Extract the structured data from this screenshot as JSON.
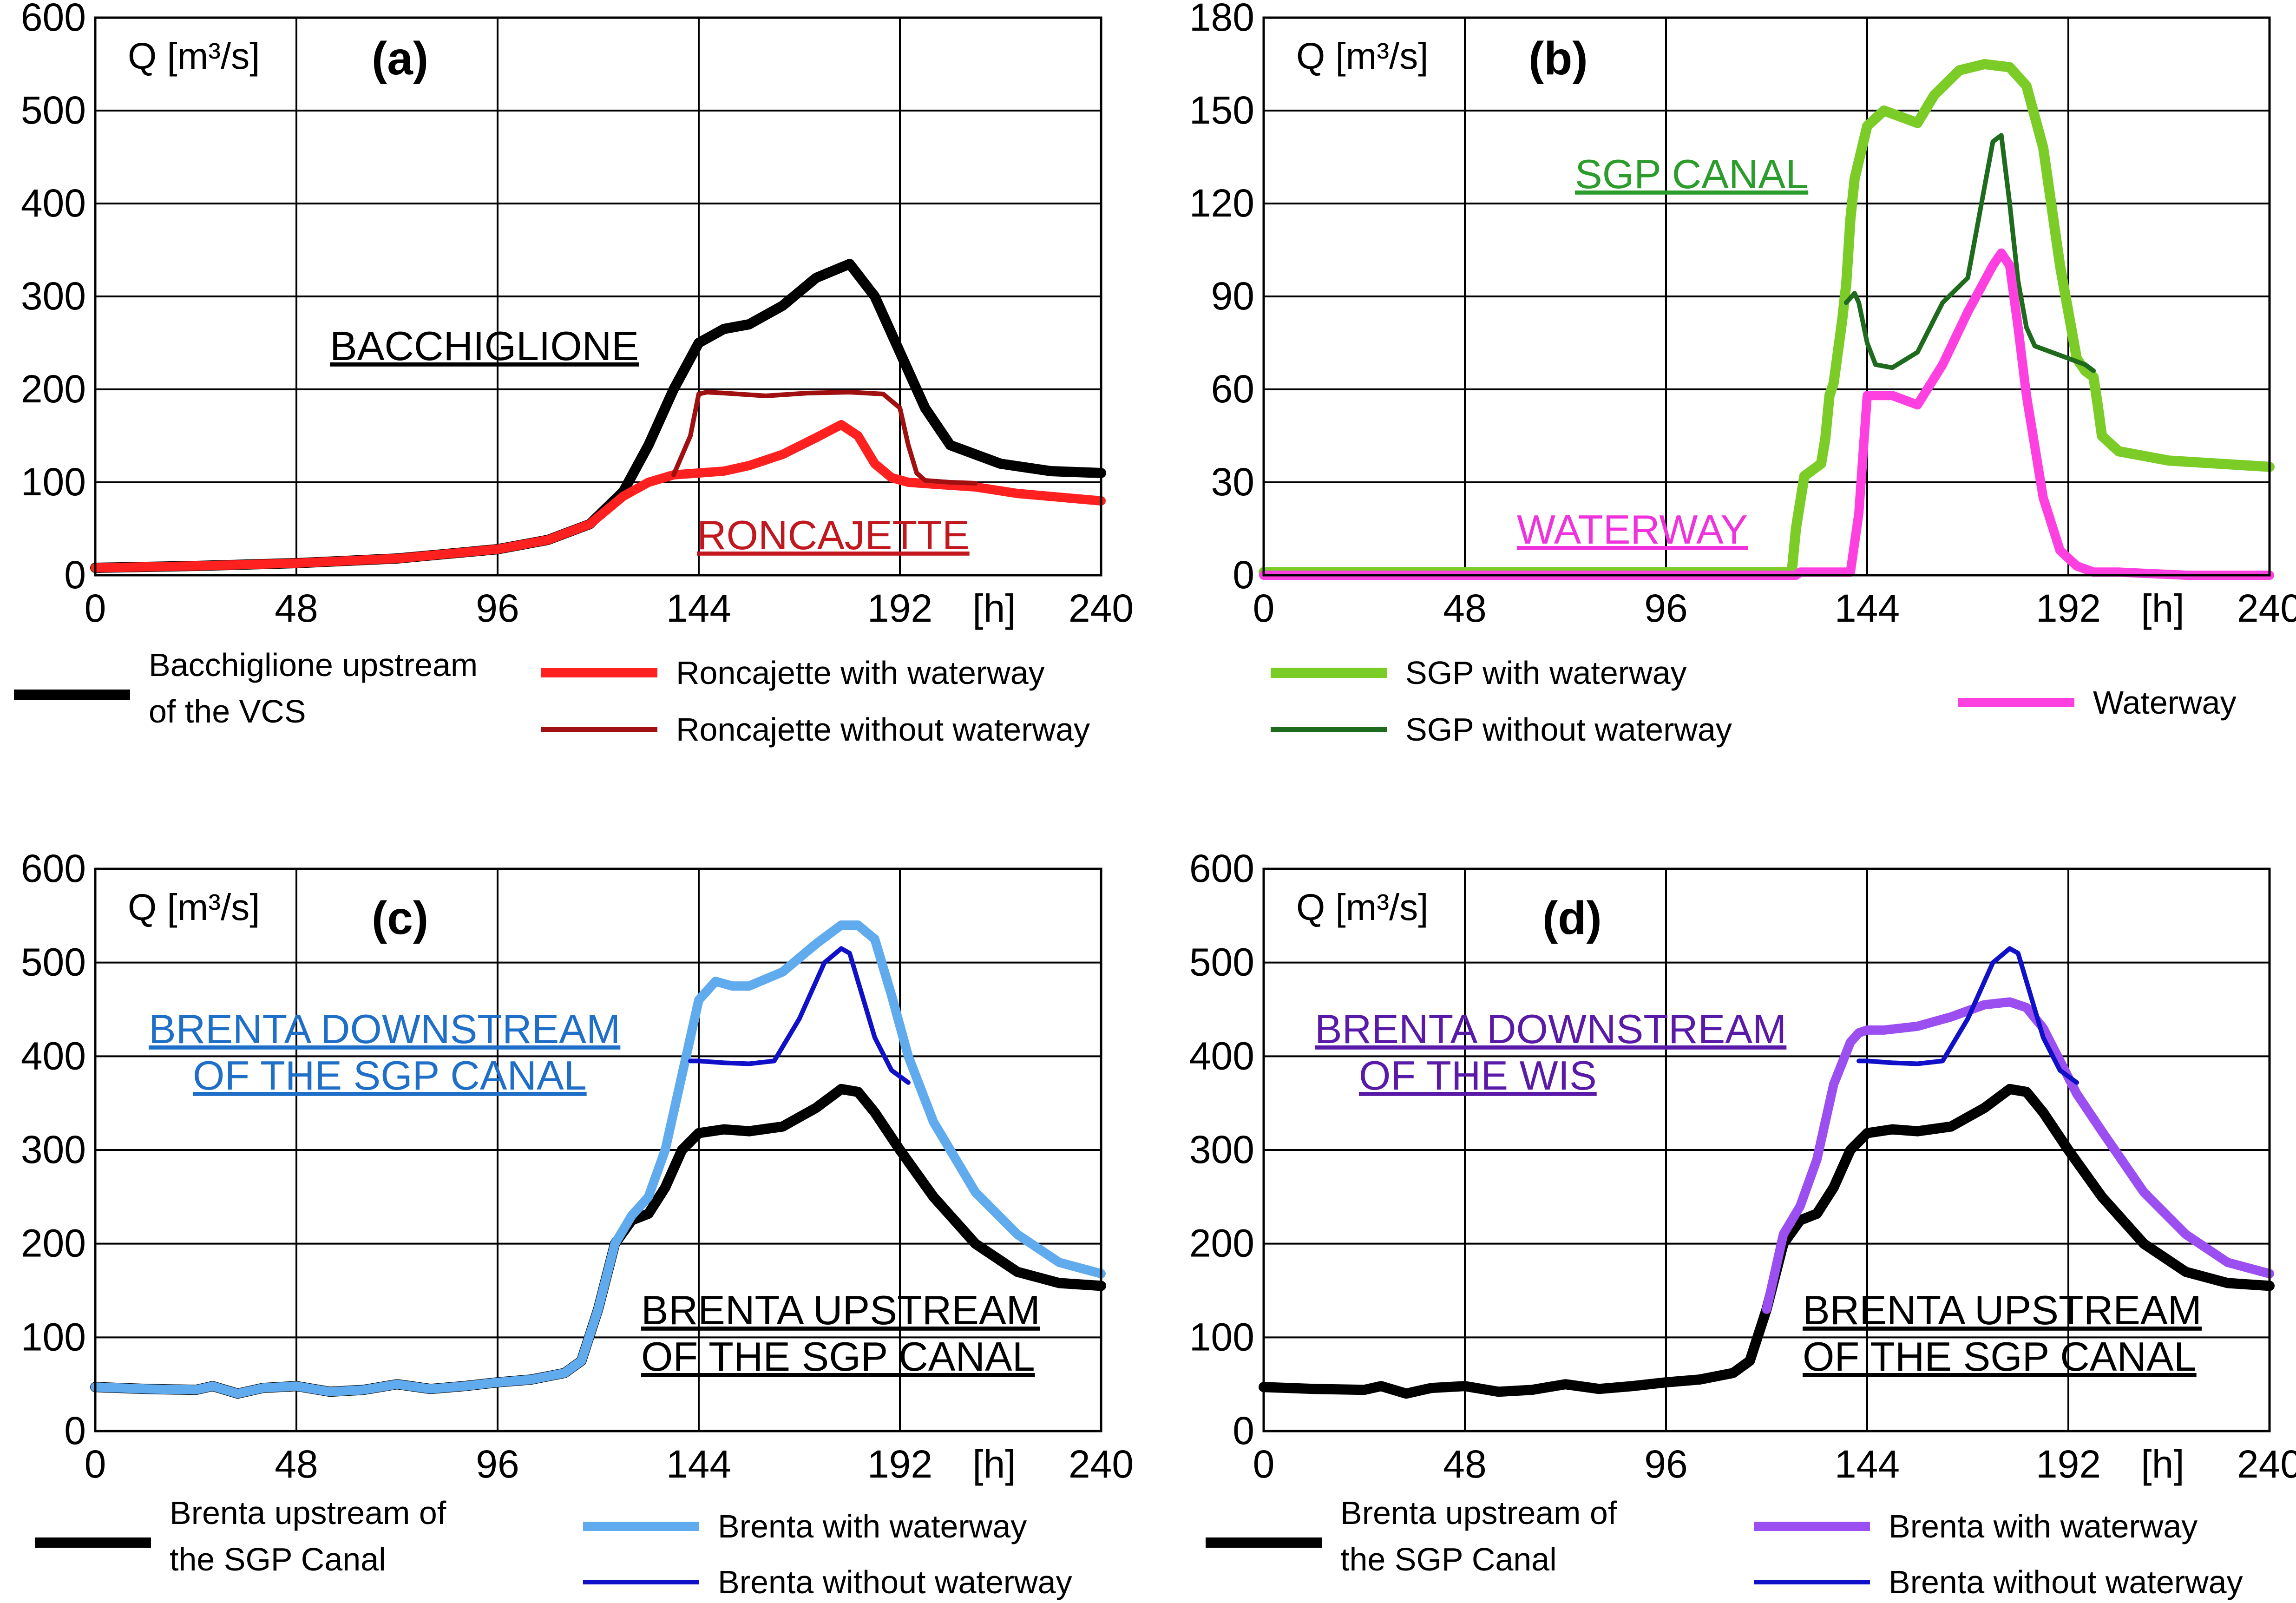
{
  "chart_data": [
    {
      "type": "line",
      "panel_label": "(a)",
      "ylabel": "Q [m³/s]",
      "xlabel": "[h]",
      "xlim": [
        0,
        240
      ],
      "ylim": [
        0,
        600
      ],
      "xticks": [
        0,
        48,
        96,
        144,
        192,
        240
      ],
      "yticks": [
        0,
        100,
        200,
        300,
        400,
        500,
        600
      ],
      "annotations": [
        {
          "text": "BACCHIGLIONE",
          "color": "#000000"
        },
        {
          "text": "RONCAJETTE",
          "color": "#c0181e"
        }
      ],
      "series": [
        {
          "name": "Bacchiglione upstream of the VCS",
          "legend_lines": [
            "Bacchiglione upstream",
            "of the VCS"
          ],
          "color": "#000000",
          "width": 22,
          "x": [
            0,
            24,
            48,
            72,
            96,
            108,
            118,
            126,
            132,
            138,
            144,
            150,
            156,
            164,
            172,
            180,
            186,
            192,
            198,
            204,
            216,
            228,
            240
          ],
          "y": [
            8,
            10,
            13,
            18,
            28,
            38,
            55,
            90,
            140,
            200,
            250,
            265,
            270,
            290,
            320,
            335,
            300,
            240,
            180,
            140,
            120,
            112,
            110
          ]
        },
        {
          "name": "Roncajette with waterway",
          "color": "#ff2020",
          "width": 20,
          "x": [
            0,
            24,
            48,
            72,
            96,
            108,
            118,
            126,
            132,
            138,
            144,
            150,
            156,
            164,
            172,
            178,
            182,
            186,
            190,
            194,
            200,
            210,
            220,
            240
          ],
          "y": [
            8,
            10,
            13,
            18,
            28,
            38,
            55,
            85,
            100,
            108,
            110,
            112,
            118,
            130,
            148,
            162,
            150,
            120,
            105,
            100,
            98,
            95,
            88,
            80
          ]
        },
        {
          "name": "Roncajette without waterway",
          "color": "#a01010",
          "width": 10,
          "x": [
            138,
            142,
            144,
            146,
            150,
            160,
            170,
            180,
            188,
            192,
            194,
            196,
            198,
            204,
            210
          ],
          "y": [
            108,
            150,
            195,
            197,
            196,
            193,
            196,
            197,
            195,
            180,
            140,
            110,
            102,
            100,
            99
          ]
        }
      ]
    },
    {
      "type": "line",
      "panel_label": "(b)",
      "ylabel": "Q [m³/s]",
      "xlabel": "[h]",
      "xlim": [
        0,
        240
      ],
      "ylim": [
        0,
        180
      ],
      "xticks": [
        0,
        48,
        96,
        144,
        192,
        240
      ],
      "yticks": [
        0,
        30,
        60,
        90,
        120,
        150,
        180
      ],
      "annotations": [
        {
          "text": "SGP CANAL",
          "color": "#2c9c2c"
        },
        {
          "text": "WATERWAY",
          "color": "#ee33dd"
        }
      ],
      "series": [
        {
          "name": "SGP with waterway",
          "color": "#7ccc28",
          "width": 22,
          "x": [
            0,
            60,
            120,
            126,
            127,
            129,
            133,
            134,
            135,
            136,
            138,
            139,
            140,
            141,
            144,
            148,
            152,
            156,
            160,
            166,
            172,
            178,
            182,
            186,
            190,
            194,
            196,
            198,
            199,
            200,
            204,
            216,
            240
          ],
          "y": [
            1,
            1,
            1,
            1,
            15,
            32,
            36,
            44,
            58,
            62,
            82,
            94,
            115,
            128,
            145,
            150,
            148,
            146,
            155,
            163,
            165,
            164,
            158,
            138,
            100,
            70,
            66,
            64,
            55,
            45,
            40,
            37,
            35
          ]
        },
        {
          "name": "SGP without waterway",
          "color": "#1e6b1e",
          "width": 10,
          "x": [
            139,
            141,
            142,
            144,
            146,
            150,
            156,
            162,
            168,
            174,
            176,
            178,
            180,
            182,
            184,
            188,
            192,
            196,
            198
          ],
          "y": [
            88,
            91,
            88,
            75,
            68,
            67,
            72,
            88,
            96,
            140,
            142,
            120,
            95,
            80,
            74,
            72,
            70,
            68,
            66
          ]
        },
        {
          "name": "Waterway",
          "color": "#ff40e0",
          "width": 20,
          "x": [
            0,
            120,
            127,
            128,
            140,
            142,
            144,
            150,
            156,
            162,
            168,
            174,
            176,
            178,
            180,
            182,
            186,
            190,
            194,
            198,
            204,
            220,
            240
          ],
          "y": [
            0,
            0,
            0,
            1,
            1,
            20,
            58,
            58,
            55,
            68,
            85,
            100,
            104,
            100,
            80,
            58,
            25,
            8,
            3,
            1,
            1,
            0,
            0
          ]
        }
      ]
    },
    {
      "type": "line",
      "panel_label": "(c)",
      "ylabel": "Q [m³/s]",
      "xlabel": "[h]",
      "xlim": [
        0,
        240
      ],
      "ylim": [
        0,
        600
      ],
      "xticks": [
        0,
        48,
        96,
        144,
        192,
        240
      ],
      "yticks": [
        0,
        100,
        200,
        300,
        400,
        500,
        600
      ],
      "annotations": [
        {
          "text": "BRENTA DOWNSTREAM",
          "text2": "OF THE SGP CANAL",
          "color": "#1f6fc8"
        },
        {
          "text": "BRENTA UPSTREAM",
          "text2": "OF THE SGP CANAL",
          "color": "#000000"
        }
      ],
      "series": [
        {
          "name": "Brenta upstream of the SGP Canal",
          "legend_lines": [
            "Brenta upstream of",
            "the SGP Canal"
          ],
          "color": "#000000",
          "width": 22,
          "x": [
            0,
            12,
            24,
            28,
            34,
            40,
            48,
            56,
            64,
            72,
            80,
            88,
            96,
            104,
            112,
            116,
            120,
            124,
            128,
            132,
            136,
            140,
            144,
            150,
            156,
            164,
            172,
            178,
            182,
            186,
            192,
            200,
            210,
            220,
            230,
            240
          ],
          "y": [
            47,
            45,
            44,
            48,
            40,
            46,
            48,
            42,
            44,
            50,
            45,
            48,
            52,
            55,
            62,
            75,
            130,
            200,
            225,
            232,
            260,
            300,
            318,
            322,
            320,
            325,
            345,
            365,
            362,
            340,
            300,
            250,
            200,
            170,
            158,
            155
          ]
        },
        {
          "name": "Brenta with waterway",
          "color": "#60aaee",
          "width": 20,
          "x": [
            0,
            12,
            24,
            28,
            34,
            40,
            48,
            56,
            64,
            72,
            80,
            88,
            96,
            104,
            112,
            116,
            120,
            124,
            128,
            132,
            136,
            140,
            144,
            148,
            152,
            156,
            164,
            172,
            178,
            182,
            186,
            190,
            194,
            200,
            210,
            220,
            230,
            240
          ],
          "y": [
            47,
            45,
            44,
            48,
            40,
            46,
            48,
            42,
            44,
            50,
            45,
            48,
            52,
            55,
            62,
            75,
            130,
            200,
            230,
            250,
            300,
            380,
            460,
            480,
            475,
            475,
            490,
            520,
            540,
            540,
            525,
            465,
            400,
            330,
            255,
            210,
            180,
            168
          ]
        },
        {
          "name": "Brenta without waterway",
          "color": "#1010c8",
          "width": 10,
          "x": [
            142,
            144,
            150,
            156,
            162,
            168,
            174,
            178,
            180,
            182,
            186,
            190,
            194
          ],
          "y": [
            395,
            395,
            393,
            392,
            395,
            440,
            500,
            515,
            510,
            480,
            420,
            385,
            372
          ]
        }
      ]
    },
    {
      "type": "line",
      "panel_label": "(d)",
      "ylabel": "Q [m³/s]",
      "xlabel": "[h]",
      "xlim": [
        0,
        240
      ],
      "ylim": [
        0,
        600
      ],
      "xticks": [
        0,
        48,
        96,
        144,
        192,
        240
      ],
      "yticks": [
        0,
        100,
        200,
        300,
        400,
        500,
        600
      ],
      "annotations": [
        {
          "text": "BRENTA DOWNSTREAM",
          "text2": "OF THE WIS",
          "color": "#5a1aa8"
        },
        {
          "text": "BRENTA UPSTREAM",
          "text2": "OF THE SGP CANAL",
          "color": "#000000"
        }
      ],
      "series": [
        {
          "name": "Brenta upstream of the SGP Canal",
          "legend_lines": [
            "Brenta upstream of",
            "the SGP Canal"
          ],
          "color": "#000000",
          "width": 22,
          "x": [
            0,
            12,
            24,
            28,
            34,
            40,
            48,
            56,
            64,
            72,
            80,
            88,
            96,
            104,
            112,
            116,
            120,
            124,
            128,
            132,
            136,
            140,
            144,
            150,
            156,
            164,
            172,
            178,
            182,
            186,
            192,
            200,
            210,
            220,
            230,
            240
          ],
          "y": [
            47,
            45,
            44,
            48,
            40,
            46,
            48,
            42,
            44,
            50,
            45,
            48,
            52,
            55,
            62,
            75,
            130,
            200,
            225,
            232,
            260,
            300,
            318,
            322,
            320,
            325,
            345,
            365,
            362,
            340,
            300,
            250,
            200,
            170,
            158,
            155
          ]
        },
        {
          "name": "Brenta with waterway",
          "color": "#9b4ff0",
          "width": 20,
          "x": [
            120,
            124,
            128,
            132,
            136,
            140,
            142,
            144,
            148,
            156,
            164,
            172,
            178,
            182,
            186,
            190,
            194,
            200,
            210,
            220,
            230,
            240
          ],
          "y": [
            130,
            210,
            240,
            290,
            370,
            415,
            425,
            428,
            428,
            432,
            442,
            455,
            458,
            452,
            430,
            395,
            360,
            320,
            255,
            210,
            180,
            168
          ]
        },
        {
          "name": "Brenta without waterway",
          "color": "#1010c8",
          "width": 10,
          "x": [
            142,
            144,
            150,
            156,
            162,
            168,
            174,
            178,
            180,
            182,
            186,
            190,
            194
          ],
          "y": [
            395,
            395,
            393,
            392,
            395,
            440,
            500,
            515,
            510,
            480,
            420,
            385,
            372
          ]
        }
      ]
    }
  ]
}
